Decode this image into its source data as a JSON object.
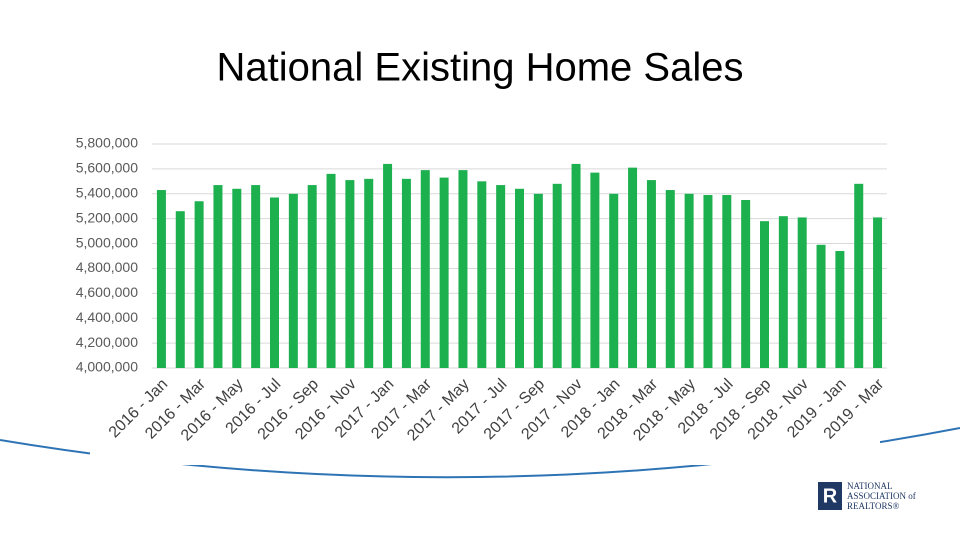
{
  "chart_data": {
    "type": "bar",
    "title": "National Existing Home Sales",
    "categories": [
      "2016 - Jan",
      null,
      "2016 - Mar",
      null,
      "2016 - May",
      null,
      "2016 - Jul",
      null,
      "2016 - Sep",
      null,
      "2016 - Nov",
      null,
      "2017 - Jan",
      null,
      "2017 - Mar",
      null,
      "2017 - May",
      null,
      "2017 - Jul",
      null,
      "2017 - Sep",
      null,
      "2017 - Nov",
      null,
      "2018 - Jan",
      null,
      "2018 - Mar",
      null,
      "2018 - May",
      null,
      "2018 - Jul",
      null,
      "2018 - Sep",
      null,
      "2018 - Nov",
      null,
      "2019 - Jan",
      null,
      "2019 - Mar"
    ],
    "values": [
      5430000,
      5260000,
      5340000,
      5470000,
      5440000,
      5470000,
      5370000,
      5400000,
      5470000,
      5560000,
      5510000,
      5520000,
      5640000,
      5520000,
      5590000,
      5530000,
      5590000,
      5500000,
      5470000,
      5440000,
      5400000,
      5480000,
      5640000,
      5570000,
      5400000,
      5610000,
      5510000,
      5430000,
      5400000,
      5390000,
      5390000,
      5350000,
      5180000,
      5220000,
      5210000,
      4990000,
      4940000,
      5480000,
      5210000
    ],
    "color": "#1db04f",
    "ylim": [
      4000000,
      5800000
    ],
    "yticks": [
      {
        "value": 4000000,
        "label": "4,000,000"
      },
      {
        "value": 4200000,
        "label": "4,200,000"
      },
      {
        "value": 4400000,
        "label": "4,400,000"
      },
      {
        "value": 4600000,
        "label": "4,600,000"
      },
      {
        "value": 4800000,
        "label": "4,800,000"
      },
      {
        "value": 5000000,
        "label": "5,000,000"
      },
      {
        "value": 5200000,
        "label": "5,200,000"
      },
      {
        "value": 5400000,
        "label": "5,400,000"
      },
      {
        "value": 5600000,
        "label": "5,600,000"
      },
      {
        "value": 5800000,
        "label": "5,800,000"
      }
    ],
    "grid": true
  },
  "logo": {
    "mark": "R",
    "lines": [
      "NATIONAL",
      "ASSOCIATION of",
      "REALTORS®"
    ]
  }
}
